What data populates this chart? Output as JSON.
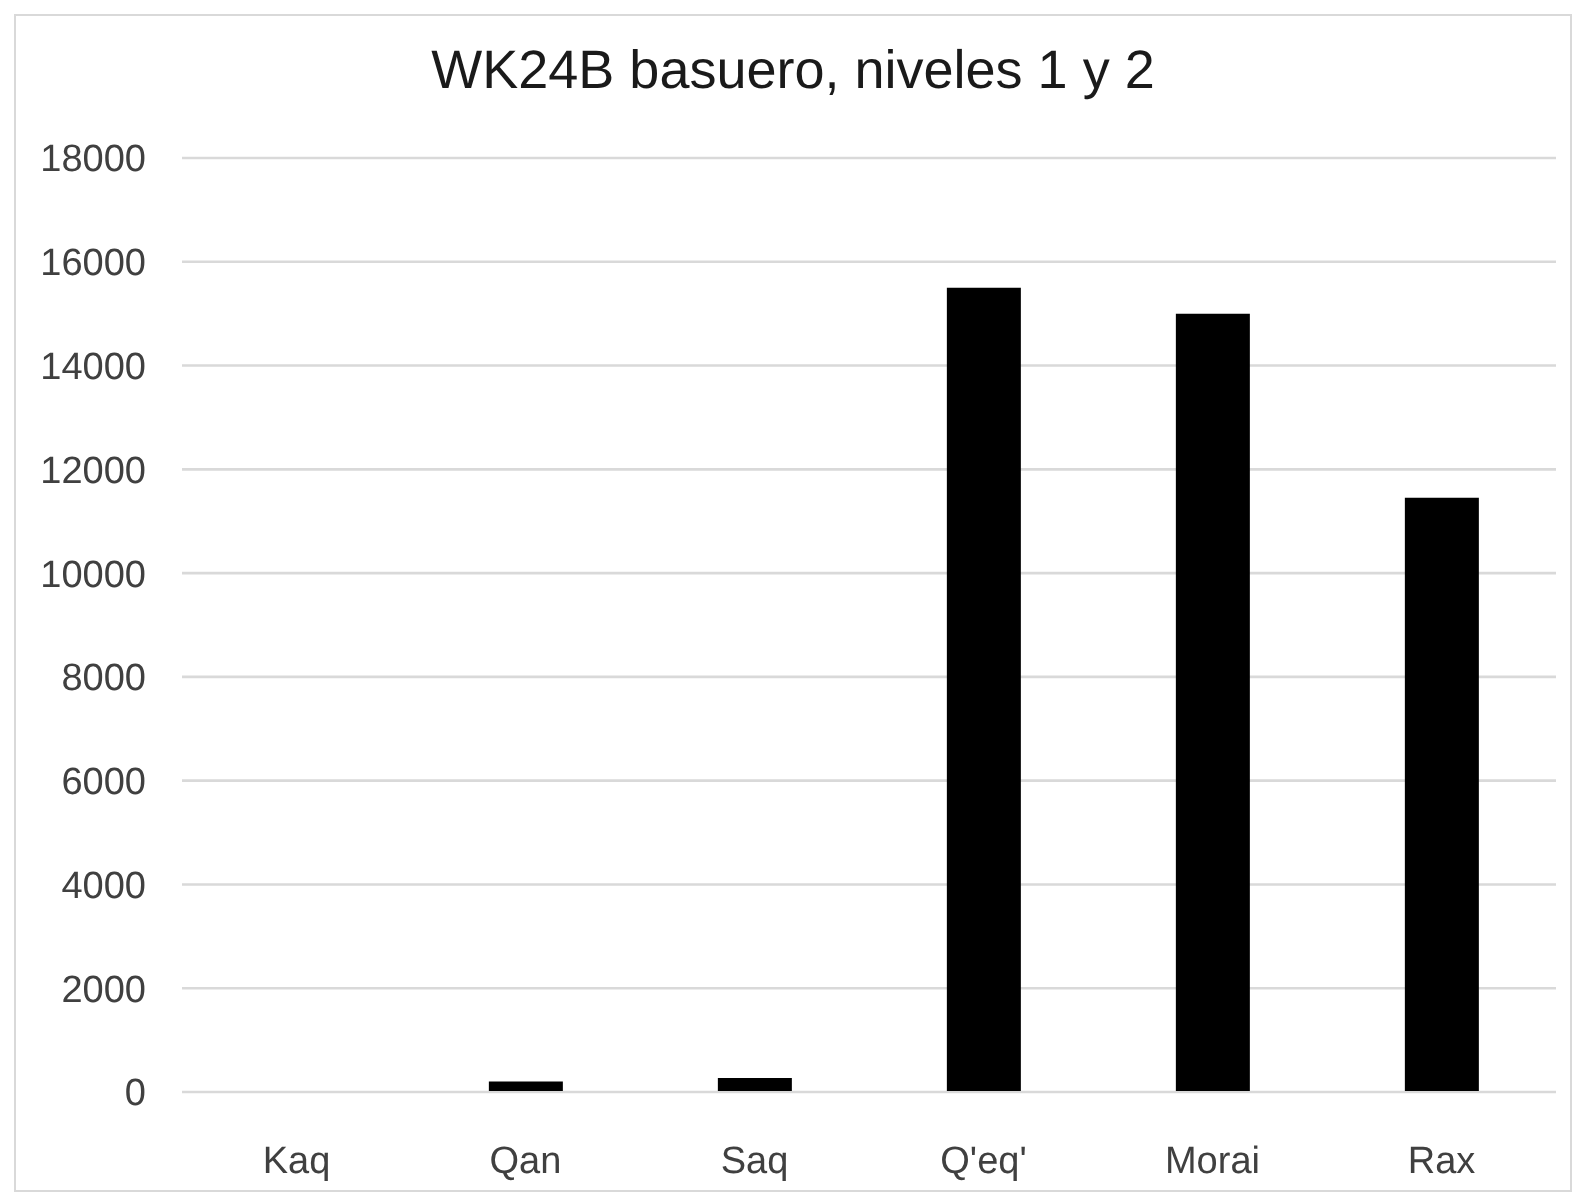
{
  "chart_data": {
    "type": "bar",
    "title": "WK24B basuero, niveles 1 y 2",
    "categories": [
      "Kaq",
      "Qan",
      "Saq",
      "Q'eq'",
      "Morai",
      "Rax"
    ],
    "values": [
      0,
      200,
      270,
      15500,
      15000,
      11450
    ],
    "color": "#000000",
    "ylim": [
      0,
      18000
    ],
    "yticks": [
      0,
      2000,
      4000,
      6000,
      8000,
      10000,
      12000,
      14000,
      16000,
      18000
    ],
    "grid": "y"
  }
}
